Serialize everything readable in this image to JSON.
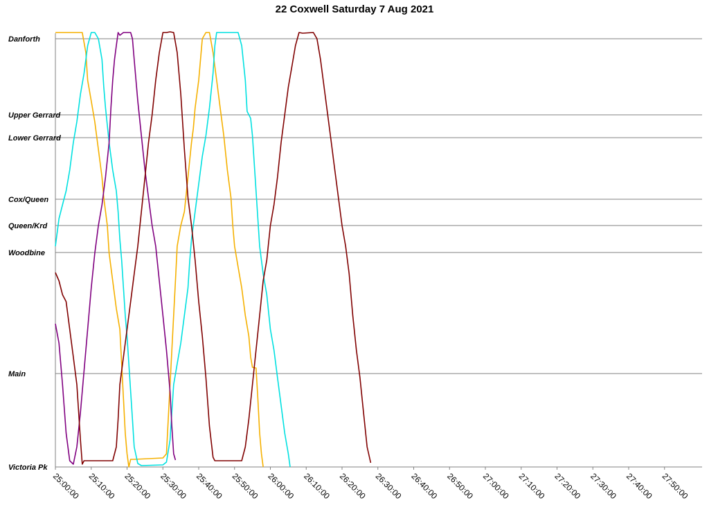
{
  "chart_data": {
    "type": "line",
    "title": "22 Coxwell Saturday 7 Aug 2021",
    "xlabel": "",
    "ylabel": "",
    "x_ticks": [
      "25:00:00",
      "25:10:00",
      "25:20:00",
      "25:30:00",
      "25:40:00",
      "25:50:00",
      "26:00:00",
      "26:10:00",
      "26:20:00",
      "26:30:00",
      "26:40:00",
      "26:50:00",
      "27:00:00",
      "27:10:00",
      "27:20:00",
      "27:30:00",
      "27:40:00",
      "27:50:00"
    ],
    "x_range_minutes": [
      0,
      180
    ],
    "stops": [
      {
        "name": "Danforth",
        "position": 0
      },
      {
        "name": "Upper Gerrard",
        "position": 110
      },
      {
        "name": "Lower Gerrard",
        "position": 143
      },
      {
        "name": "Cox/Queen",
        "position": 232
      },
      {
        "name": "Queen/Krd",
        "position": 270
      },
      {
        "name": "Woodbine",
        "position": 309
      },
      {
        "name": "Main",
        "position": 484
      },
      {
        "name": "Victoria Pk",
        "position": 619
      }
    ],
    "y_range": [
      0,
      619
    ],
    "grid": true,
    "series": [
      {
        "color": "#f5b000",
        "points": [
          [
            0,
            -9
          ],
          [
            7.5,
            -9
          ],
          [
            8.5,
            20
          ],
          [
            9,
            60
          ],
          [
            10,
            90
          ],
          [
            11,
            120
          ],
          [
            12,
            160
          ],
          [
            13,
            200
          ],
          [
            13.5,
            230
          ],
          [
            14.5,
            270
          ],
          [
            15,
            310
          ],
          [
            16,
            350
          ],
          [
            17,
            390
          ],
          [
            18,
            420
          ],
          [
            18.5,
            470
          ],
          [
            19,
            520
          ],
          [
            19.5,
            570
          ],
          [
            20,
            600
          ],
          [
            20.5,
            619
          ],
          [
            21,
            608
          ],
          [
            22,
            608
          ],
          [
            30,
            606
          ],
          [
            31,
            600
          ],
          [
            31.5,
            550
          ],
          [
            32,
            500
          ],
          [
            32.5,
            450
          ],
          [
            33,
            400
          ],
          [
            33.5,
            350
          ],
          [
            34,
            300
          ],
          [
            35,
            270
          ],
          [
            36,
            250
          ],
          [
            37,
            200
          ],
          [
            38,
            150
          ],
          [
            38.5,
            130
          ],
          [
            39,
            100
          ],
          [
            40,
            60
          ],
          [
            40.5,
            30
          ],
          [
            41,
            0
          ],
          [
            42,
            -9
          ],
          [
            43,
            -9
          ],
          [
            44,
            20
          ],
          [
            45,
            60
          ],
          [
            46,
            100
          ],
          [
            47,
            140
          ],
          [
            48,
            190
          ],
          [
            49,
            230
          ],
          [
            49.5,
            270
          ],
          [
            50,
            300
          ],
          [
            51,
            330
          ],
          [
            52,
            360
          ],
          [
            53,
            400
          ],
          [
            54,
            430
          ],
          [
            54.5,
            460
          ],
          [
            55,
            475
          ],
          [
            56,
            476
          ],
          [
            56.5,
            520
          ],
          [
            57,
            570
          ],
          [
            57.5,
            600
          ],
          [
            58,
            619
          ]
        ]
      },
      {
        "color": "#00e0e0",
        "points": [
          [
            0,
            300
          ],
          [
            1,
            260
          ],
          [
            2,
            240
          ],
          [
            3,
            220
          ],
          [
            4,
            190
          ],
          [
            5,
            150
          ],
          [
            6,
            120
          ],
          [
            7,
            80
          ],
          [
            8,
            50
          ],
          [
            9,
            10
          ],
          [
            10,
            -9
          ],
          [
            11,
            -9
          ],
          [
            12,
            0
          ],
          [
            13,
            30
          ],
          [
            13.5,
            70
          ],
          [
            14,
            100
          ],
          [
            15,
            150
          ],
          [
            16,
            190
          ],
          [
            17,
            220
          ],
          [
            17.5,
            250
          ],
          [
            18,
            290
          ],
          [
            18.5,
            320
          ],
          [
            19,
            360
          ],
          [
            19.5,
            400
          ],
          [
            20,
            430
          ],
          [
            20.5,
            470
          ],
          [
            21,
            510
          ],
          [
            21.5,
            550
          ],
          [
            22,
            590
          ],
          [
            23,
            614
          ],
          [
            24,
            617
          ],
          [
            30,
            616
          ],
          [
            31,
            612
          ],
          [
            32,
            580
          ],
          [
            32.5,
            540
          ],
          [
            33,
            500
          ],
          [
            34,
            470
          ],
          [
            35,
            440
          ],
          [
            36,
            400
          ],
          [
            37,
            360
          ],
          [
            37.5,
            320
          ],
          [
            38,
            290
          ],
          [
            39,
            250
          ],
          [
            40,
            210
          ],
          [
            41,
            170
          ],
          [
            42,
            140
          ],
          [
            43,
            100
          ],
          [
            44,
            50
          ],
          [
            44.5,
            10
          ],
          [
            45,
            -9
          ],
          [
            51,
            -9
          ],
          [
            52,
            10
          ],
          [
            53,
            60
          ],
          [
            53.5,
            105
          ],
          [
            54.5,
            115
          ],
          [
            55,
            140
          ],
          [
            55.5,
            180
          ],
          [
            56,
            220
          ],
          [
            56.5,
            260
          ],
          [
            57,
            300
          ],
          [
            58,
            340
          ],
          [
            59,
            370
          ],
          [
            60,
            420
          ],
          [
            61,
            450
          ],
          [
            62,
            490
          ],
          [
            63,
            530
          ],
          [
            64,
            570
          ],
          [
            65,
            600
          ],
          [
            65.5,
            619
          ]
        ]
      },
      {
        "color": "#800080",
        "points": [
          [
            0,
            412
          ],
          [
            1,
            440
          ],
          [
            2,
            500
          ],
          [
            3,
            570
          ],
          [
            4,
            610
          ],
          [
            5,
            615
          ],
          [
            6,
            590
          ],
          [
            7,
            540
          ],
          [
            8,
            480
          ],
          [
            9,
            420
          ],
          [
            10,
            360
          ],
          [
            11,
            310
          ],
          [
            12,
            270
          ],
          [
            13,
            240
          ],
          [
            14,
            200
          ],
          [
            15,
            150
          ],
          [
            15.5,
            100
          ],
          [
            16,
            60
          ],
          [
            16.5,
            30
          ],
          [
            17,
            10
          ],
          [
            17.5,
            -9
          ],
          [
            18,
            -5
          ],
          [
            19,
            -9
          ],
          [
            21,
            -9
          ],
          [
            21.5,
            0
          ],
          [
            22,
            30
          ],
          [
            23,
            90
          ],
          [
            24,
            140
          ],
          [
            25,
            190
          ],
          [
            26,
            230
          ],
          [
            27,
            270
          ],
          [
            28,
            300
          ],
          [
            29,
            350
          ],
          [
            30,
            400
          ],
          [
            31,
            450
          ],
          [
            32,
            510
          ],
          [
            32.5,
            560
          ],
          [
            33,
            600
          ],
          [
            33.5,
            609
          ]
        ]
      },
      {
        "color": "#800000",
        "points": [
          [
            0,
            338
          ],
          [
            1,
            350
          ],
          [
            2,
            370
          ],
          [
            3,
            380
          ],
          [
            4,
            420
          ],
          [
            5,
            460
          ],
          [
            6,
            500
          ],
          [
            7,
            580
          ],
          [
            7.5,
            615
          ],
          [
            8,
            610
          ],
          [
            10,
            610
          ],
          [
            14,
            610
          ],
          [
            16,
            610
          ],
          [
            17,
            590
          ],
          [
            17.5,
            550
          ],
          [
            18,
            500
          ],
          [
            19,
            460
          ],
          [
            20,
            420
          ],
          [
            21,
            380
          ],
          [
            22,
            340
          ],
          [
            23,
            300
          ],
          [
            24,
            250
          ],
          [
            25,
            200
          ],
          [
            26,
            150
          ],
          [
            27,
            110
          ],
          [
            28,
            60
          ],
          [
            29,
            20
          ],
          [
            30,
            -9
          ],
          [
            31,
            -9
          ],
          [
            32,
            -10
          ],
          [
            33,
            -9
          ],
          [
            34,
            20
          ],
          [
            35,
            80
          ],
          [
            36,
            160
          ],
          [
            37,
            230
          ],
          [
            38,
            270
          ],
          [
            39,
            320
          ],
          [
            40,
            380
          ],
          [
            41,
            430
          ],
          [
            42,
            490
          ],
          [
            43,
            560
          ],
          [
            44,
            605
          ],
          [
            44.5,
            610
          ],
          [
            46,
            610
          ],
          [
            50,
            610
          ],
          [
            52,
            610
          ],
          [
            53,
            590
          ],
          [
            54,
            550
          ],
          [
            55,
            500
          ],
          [
            56,
            450
          ],
          [
            57,
            400
          ],
          [
            58,
            350
          ],
          [
            59,
            320
          ],
          [
            60,
            270
          ],
          [
            61,
            240
          ],
          [
            62,
            200
          ],
          [
            63,
            150
          ],
          [
            64,
            110
          ],
          [
            65,
            70
          ],
          [
            66,
            40
          ],
          [
            67,
            10
          ],
          [
            68,
            -9
          ],
          [
            69,
            -8
          ],
          [
            72,
            -9
          ],
          [
            73,
            0
          ],
          [
            74,
            30
          ],
          [
            75,
            70
          ],
          [
            76,
            110
          ],
          [
            77,
            150
          ],
          [
            78,
            190
          ],
          [
            79,
            230
          ],
          [
            80,
            270
          ],
          [
            81,
            300
          ],
          [
            82,
            340
          ],
          [
            83,
            400
          ],
          [
            84,
            450
          ],
          [
            85,
            490
          ],
          [
            86,
            540
          ],
          [
            87,
            590
          ],
          [
            88,
            613
          ]
        ]
      }
    ]
  }
}
